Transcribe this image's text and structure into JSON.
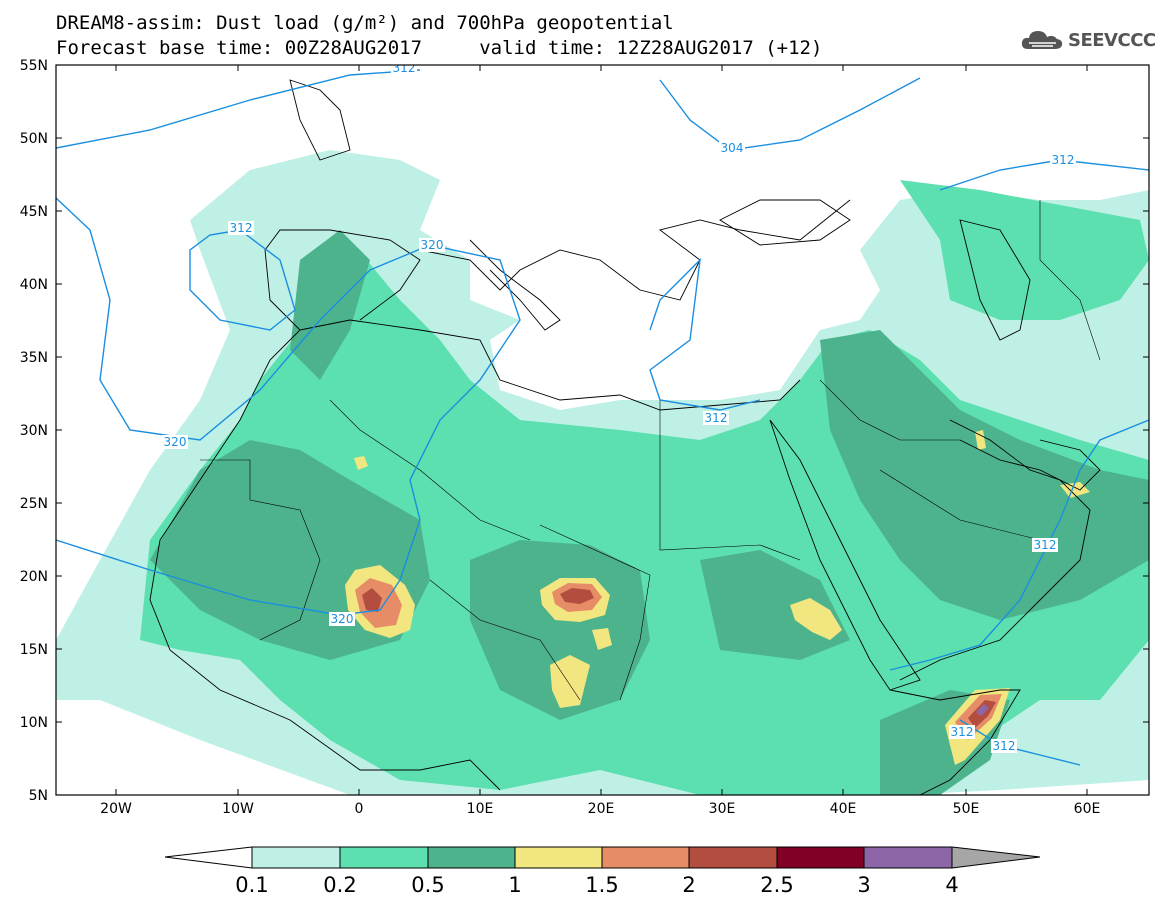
{
  "title": {
    "line1": "DREAM8-assim: Dust load (g/m²) and 700hPa geopotential",
    "line2": "Forecast base time: 00Z28AUG2017     valid time: 12Z28AUG2017 (+12)"
  },
  "brand": {
    "name": "SEEVCCC",
    "icon": "cloud-logo-icon"
  },
  "map": {
    "lat_labels": [
      "55N",
      "50N",
      "45N",
      "40N",
      "35N",
      "30N",
      "25N",
      "20N",
      "15N",
      "10N",
      "5N"
    ],
    "lon_labels": [
      "20W",
      "10W",
      "0",
      "10E",
      "20E",
      "30E",
      "40E",
      "50E",
      "60E"
    ],
    "contour_labels": [
      {
        "text": "312"
      },
      {
        "text": "304"
      },
      {
        "text": "312"
      },
      {
        "text": "312"
      },
      {
        "text": "320"
      },
      {
        "text": "320"
      },
      {
        "text": "312"
      },
      {
        "text": "320"
      },
      {
        "text": "312"
      },
      {
        "text": "312"
      },
      {
        "text": "312"
      }
    ],
    "colors": {
      "c01": "#bff0e6",
      "c02": "#5ce0b0",
      "c05": "#4db38c",
      "c1": "#f2e680",
      "c15": "#e68c66",
      "c2": "#b34d40",
      "c25": "#800026",
      "c3": "#8c66a6",
      "c4": "#a6a6a6",
      "contour": "#1a8fe0"
    }
  },
  "colorbar": {
    "labels": [
      "0.1",
      "0.2",
      "0.5",
      "1",
      "1.5",
      "2",
      "2.5",
      "3",
      "4"
    ]
  }
}
